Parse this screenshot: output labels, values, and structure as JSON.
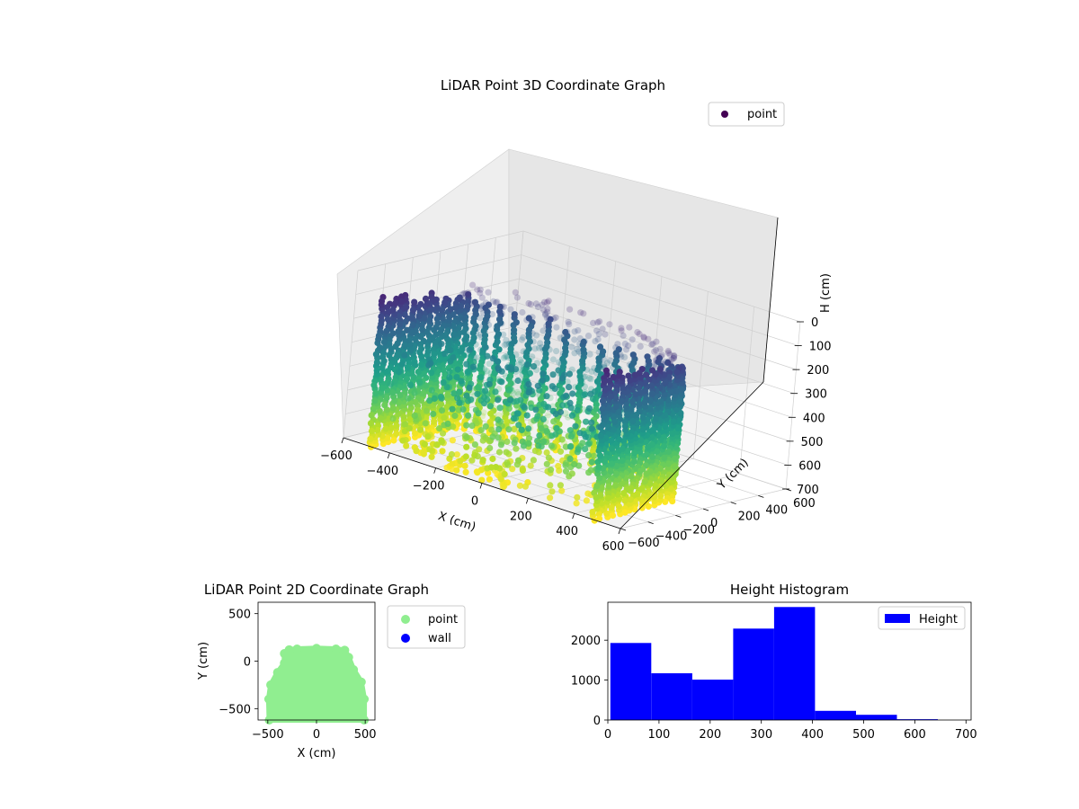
{
  "chart_data": [
    {
      "type": "scatter",
      "projection": "3d",
      "title": "LiDAR Point 3D Coordinate Graph",
      "xlabel": "X (cm)",
      "ylabel": "Y (cm)",
      "zlabel": "H (cm)",
      "xlim": [
        -600,
        600
      ],
      "ylim": [
        -600,
        600
      ],
      "zlim": [
        700,
        0
      ],
      "z_inverted": true,
      "xticks": [
        -600,
        -400,
        -200,
        0,
        200,
        400,
        600
      ],
      "yticks": [
        -600,
        -400,
        -200,
        0,
        200,
        400,
        600
      ],
      "zticks": [
        0,
        100,
        200,
        300,
        400,
        500,
        600,
        700
      ],
      "xtick_labels": [
        "−600",
        "−400",
        "−200",
        "0",
        "200",
        "400",
        "600"
      ],
      "ytick_labels": [
        "−600",
        "−400",
        "−200",
        "0",
        "200",
        "400",
        "600"
      ],
      "ztick_labels": [
        "0",
        "100",
        "200",
        "300",
        "400",
        "500",
        "600",
        "700"
      ],
      "colormap": "viridis",
      "grid": true,
      "legend": {
        "position": "top-right",
        "entries": [
          {
            "label": "point",
            "color": "#440154"
          }
        ]
      },
      "series": [
        {
          "name": "point",
          "description_of_shape": "U-shaped wall of points: x from about -500 to 500, y from about -600 to 130, heights 0-700",
          "sample_points": [
            {
              "x": -480,
              "y": -550,
              "h": 80
            },
            {
              "x": -470,
              "y": -300,
              "h": 320
            },
            {
              "x": -400,
              "y": -50,
              "h": 400
            },
            {
              "x": -250,
              "y": 90,
              "h": 560
            },
            {
              "x": 0,
              "y": 130,
              "h": 660
            },
            {
              "x": 250,
              "y": 90,
              "h": 560
            },
            {
              "x": 400,
              "y": -50,
              "h": 400
            },
            {
              "x": 470,
              "y": -300,
              "h": 320
            },
            {
              "x": 480,
              "y": -550,
              "h": 80
            },
            {
              "x": 0,
              "y": -100,
              "h": 300
            },
            {
              "x": -100,
              "y": -250,
              "h": 200
            },
            {
              "x": 150,
              "y": -350,
              "h": 150
            }
          ]
        }
      ]
    },
    {
      "type": "scatter",
      "title": "LiDAR Point 2D Coordinate Graph",
      "xlabel": "X (cm)",
      "ylabel": "Y (cm)",
      "xlim": [
        -600,
        600
      ],
      "ylim": [
        -620,
        620
      ],
      "xticks": [
        -500,
        0,
        500
      ],
      "yticks": [
        -500,
        0,
        500
      ],
      "xtick_labels": [
        "−500",
        "0",
        "500"
      ],
      "ytick_labels": [
        "−500",
        "0",
        "500"
      ],
      "legend": {
        "position": "outside-right",
        "entries": [
          {
            "label": "point",
            "color": "#90ee90"
          },
          {
            "label": "wall",
            "color": "#0000ff"
          }
        ]
      },
      "series": [
        {
          "name": "point",
          "color": "#90ee90",
          "outline": [
            [
              -485,
              -620
            ],
            [
              -490,
              -400
            ],
            [
              -470,
              -250
            ],
            [
              -400,
              -120
            ],
            [
              -330,
              -20
            ],
            [
              -330,
              80
            ],
            [
              -280,
              120
            ],
            [
              -200,
              128
            ],
            [
              0,
              135
            ],
            [
              200,
              128
            ],
            [
              290,
              115
            ],
            [
              330,
              40
            ],
            [
              380,
              -90
            ],
            [
              460,
              -220
            ],
            [
              490,
              -400
            ],
            [
              490,
              -620
            ]
          ]
        },
        {
          "name": "wall",
          "color": "#0000ff",
          "points": []
        }
      ]
    },
    {
      "type": "bar",
      "subtype": "histogram",
      "title": "Height Histogram",
      "xlabel": "",
      "ylabel": "",
      "xlim": [
        0,
        710
      ],
      "ylim": [
        0,
        2950
      ],
      "xticks": [
        0,
        100,
        200,
        300,
        400,
        500,
        600,
        700
      ],
      "yticks": [
        0,
        1000,
        2000
      ],
      "xtick_labels": [
        "0",
        "100",
        "200",
        "300",
        "400",
        "500",
        "600",
        "700"
      ],
      "ytick_labels": [
        "0",
        "1000",
        "2000"
      ],
      "bin_edges": [
        5,
        85,
        165,
        245,
        325,
        405,
        485,
        565,
        645,
        725
      ],
      "values": [
        1930,
        1170,
        1010,
        2290,
        2830,
        230,
        130,
        20,
        0
      ],
      "color": "#0000ff",
      "legend": {
        "position": "top-right",
        "entries": [
          {
            "label": "Height",
            "color": "#0000ff"
          }
        ]
      }
    }
  ]
}
